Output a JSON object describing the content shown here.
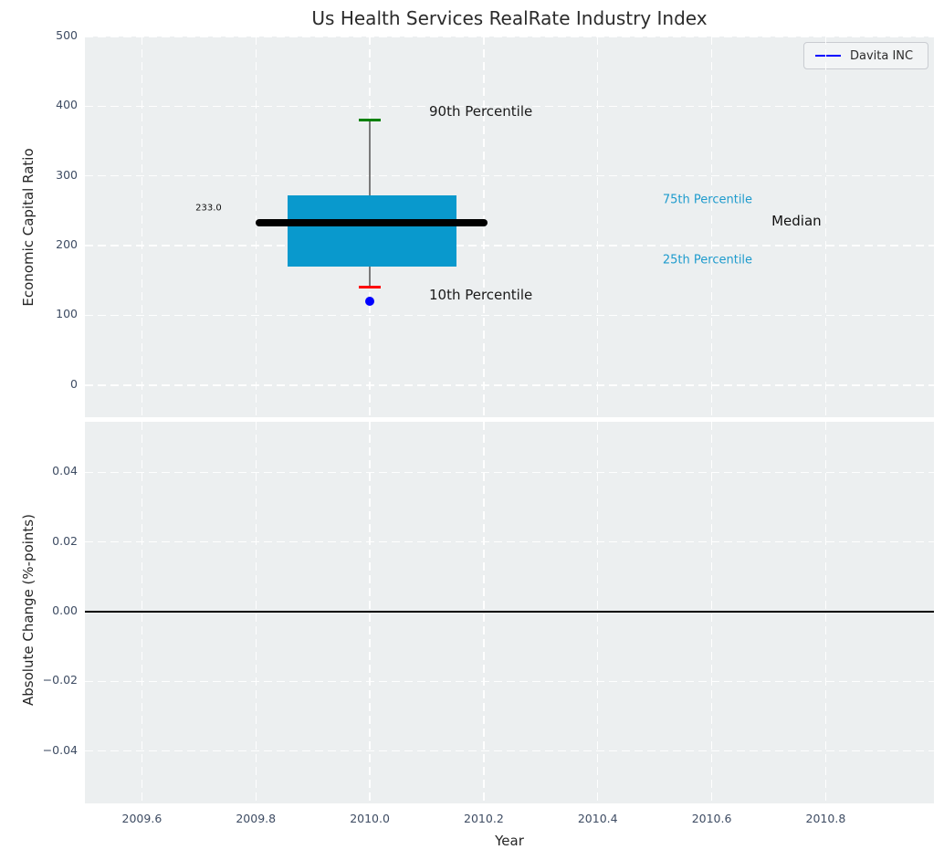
{
  "figure": {
    "title": "Us Health Services RealRate Industry Index",
    "legend": {
      "label": "Davita INC",
      "line_color": "#0000ff"
    }
  },
  "chart_data": [
    {
      "type": "boxplot",
      "title": "Us Health Services RealRate Industry Index",
      "xlabel": "",
      "ylabel": "Economic Capital Ratio",
      "xlim": [
        2009.5,
        2010.99
      ],
      "ylim": [
        -46,
        500
      ],
      "grid": {
        "on": true,
        "color": "#ffffff",
        "style": "dashed"
      },
      "legend_position": "upper right",
      "x_ticks": [
        {
          "v": 2009.6,
          "label": "2009.6"
        },
        {
          "v": 2009.8,
          "label": "2009.8"
        },
        {
          "v": 2010.0,
          "label": "2010.0"
        },
        {
          "v": 2010.2,
          "label": "2010.2"
        },
        {
          "v": 2010.4,
          "label": "2010.4"
        },
        {
          "v": 2010.6,
          "label": "2010.6"
        },
        {
          "v": 2010.8,
          "label": "2010.8"
        }
      ],
      "x_tick_labels_visible": false,
      "y_ticks": [
        {
          "v": 0,
          "label": "0"
        },
        {
          "v": 100,
          "label": "100"
        },
        {
          "v": 200,
          "label": "200"
        },
        {
          "v": 300,
          "label": "300"
        },
        {
          "v": 400,
          "label": "400"
        },
        {
          "v": 500,
          "label": "500"
        }
      ],
      "series": [
        {
          "name": "Davita INC",
          "x": 2010.0,
          "p10": 140,
          "p25": 170,
          "median": 233,
          "p75": 272,
          "p90": 380,
          "flier": 120,
          "box_x_range": [
            2009.856,
            2010.152
          ],
          "median_x_range": [
            2009.8,
            2010.2
          ],
          "box_color": "#0999cd",
          "median_color": "#000000",
          "whisker_color": "#7a7a7a",
          "cap_top_color": "#008000",
          "cap_bottom_color": "#ff0000",
          "flier_color": "#0000ff"
        }
      ],
      "annotations": [
        {
          "text": "233.0",
          "x": 2009.74,
          "y": 254,
          "color": "#111111",
          "size": 10,
          "align": "right"
        },
        {
          "text": "90th Percentile",
          "x": 2010.104,
          "y": 392,
          "color": "#1a1a1a",
          "size": 15,
          "align": "left"
        },
        {
          "text": "10th Percentile",
          "x": 2010.104,
          "y": 129,
          "color": "#1a1a1a",
          "size": 15,
          "align": "left"
        },
        {
          "text": "75th Percentile",
          "x": 2010.514,
          "y": 265,
          "color": "#1e9bcd",
          "size": 13,
          "align": "left"
        },
        {
          "text": "25th Percentile",
          "x": 2010.514,
          "y": 179,
          "color": "#1e9bcd",
          "size": 13,
          "align": "left"
        },
        {
          "text": "Median",
          "x": 2010.705,
          "y": 235,
          "color": "#111111",
          "size": 15,
          "align": "left"
        }
      ]
    },
    {
      "type": "line",
      "xlabel": "Year",
      "ylabel": "Absolute Change (%-points)",
      "xlim": [
        2009.5,
        2010.99
      ],
      "ylim": [
        -0.055,
        0.0545
      ],
      "grid": {
        "on": true,
        "color": "#ffffff",
        "style": "dashed"
      },
      "x_ticks": [
        {
          "v": 2009.6,
          "label": "2009.6"
        },
        {
          "v": 2009.8,
          "label": "2009.8"
        },
        {
          "v": 2010.0,
          "label": "2010.0"
        },
        {
          "v": 2010.2,
          "label": "2010.2"
        },
        {
          "v": 2010.4,
          "label": "2010.4"
        },
        {
          "v": 2010.6,
          "label": "2010.6"
        },
        {
          "v": 2010.8,
          "label": "2010.8"
        }
      ],
      "x_tick_labels_visible": true,
      "y_ticks": [
        {
          "v": 0.04,
          "label": "0.04"
        },
        {
          "v": 0.02,
          "label": "0.02"
        },
        {
          "v": 0.0,
          "label": "0.00"
        },
        {
          "v": -0.02,
          "label": "−0.02"
        },
        {
          "v": -0.04,
          "label": "−0.04"
        }
      ],
      "zero_line": {
        "y": 0.0,
        "color": "#000000"
      },
      "series": []
    }
  ]
}
